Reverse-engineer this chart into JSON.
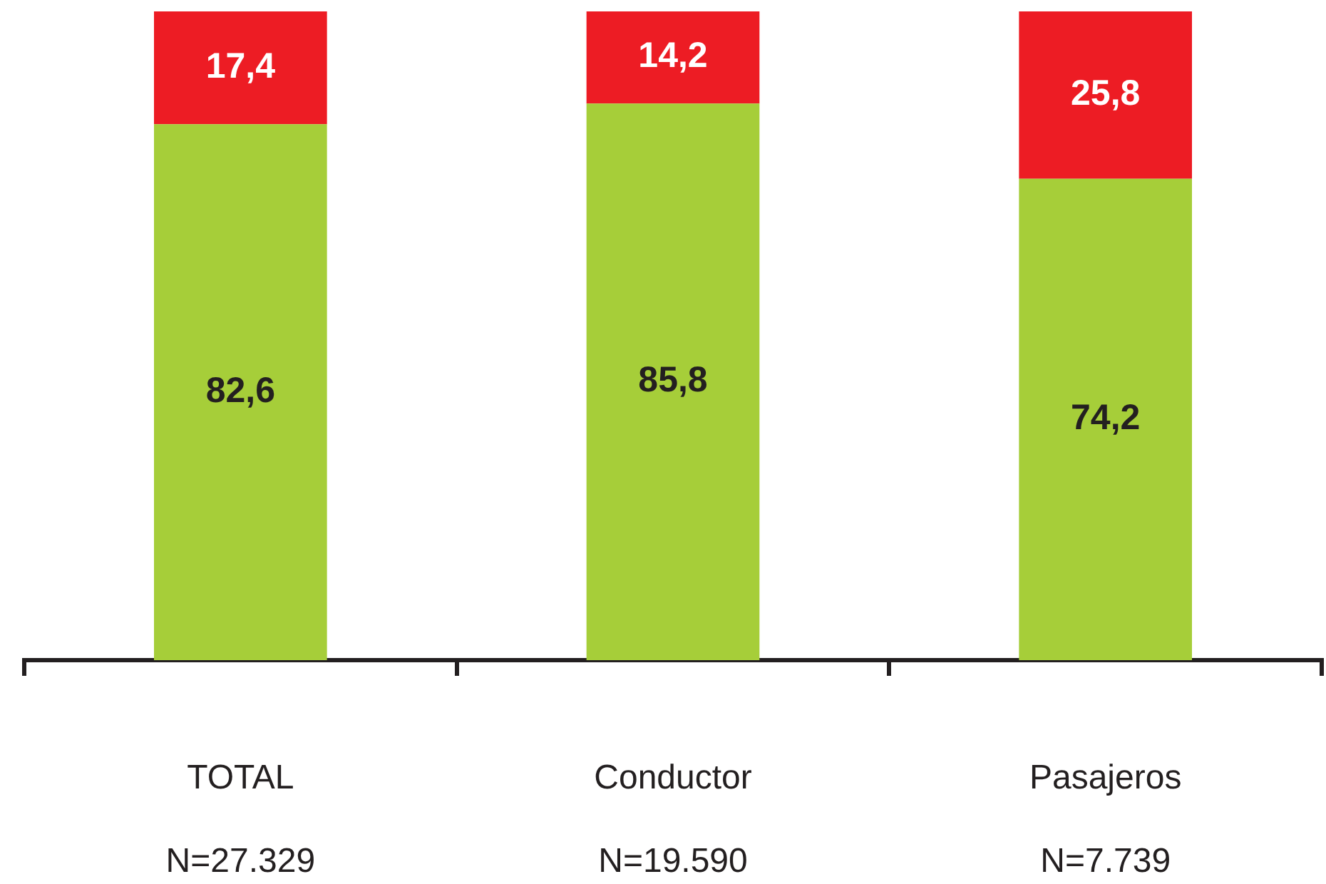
{
  "chart_data": {
    "type": "bar",
    "stacked": true,
    "categories": [
      "TOTAL",
      "Conductor",
      "Pasajeros"
    ],
    "series": [
      {
        "color": "#a6ce39",
        "values": [
          82.6,
          85.8,
          74.2
        ],
        "value_labels": [
          "82,6",
          "85,8",
          "74,2"
        ]
      },
      {
        "color": "#ed1c24",
        "values": [
          17.4,
          14.2,
          25.8
        ],
        "value_labels": [
          "17,4",
          "14,2",
          "25,8"
        ]
      }
    ],
    "ylim": [
      0,
      100
    ],
    "tick_labels": "x",
    "annotations": [
      "N=27.329",
      "N=19.590",
      "N=7.739"
    ]
  }
}
